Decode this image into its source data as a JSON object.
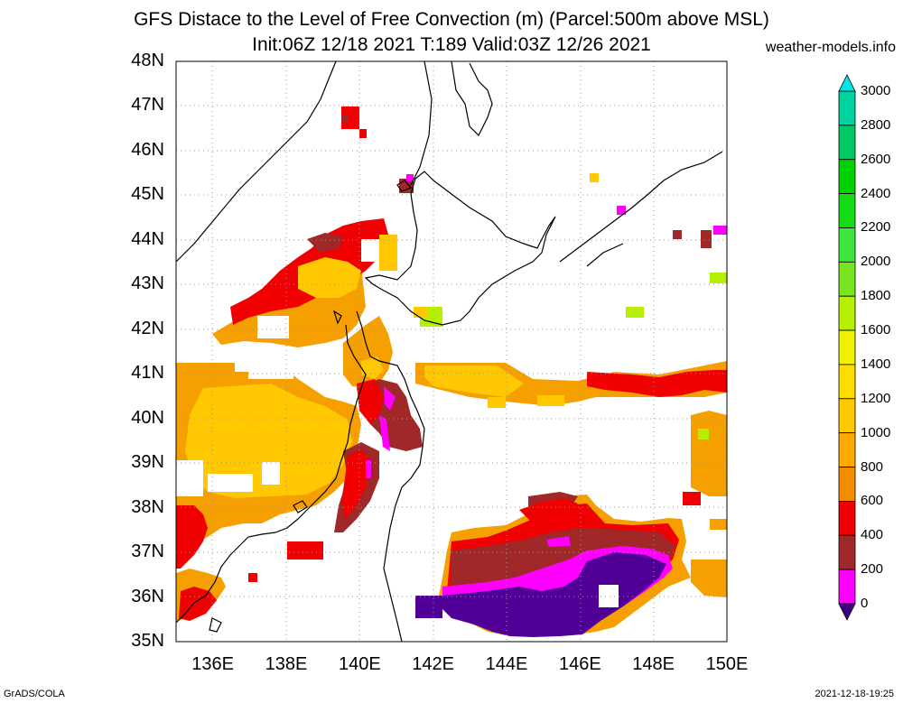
{
  "header": {
    "title": "GFS Distace to the Level of Free Convection (m) (Parcel:500m above MSL)",
    "subtitle": "Init:06Z 12/18 2021 T:189 Valid:03Z 12/26 2021",
    "site": "weather-models.info"
  },
  "footer": {
    "left": "GrADS/COLA",
    "right": "2021-12-18-19:25"
  },
  "map": {
    "lat_labels": [
      "48N",
      "47N",
      "46N",
      "45N",
      "44N",
      "43N",
      "42N",
      "41N",
      "40N",
      "39N",
      "38N",
      "37N",
      "36N",
      "35N"
    ],
    "lon_labels": [
      "136E",
      "138E",
      "140E",
      "142E",
      "144E",
      "146E",
      "148E",
      "150E"
    ],
    "lon_range": [
      135,
      150
    ],
    "lat_range": [
      35,
      48
    ]
  },
  "colorbar": {
    "levels": [
      "3000",
      "2800",
      "2600",
      "2400",
      "2200",
      "2000",
      "1800",
      "1600",
      "1400",
      "1200",
      "1000",
      "800",
      "600",
      "400",
      "200",
      "0"
    ],
    "colors": [
      "#00e6e6",
      "#00d2a0",
      "#00c864",
      "#00d200",
      "#14dc14",
      "#3ce63c",
      "#78e61e",
      "#b4f000",
      "#f0f000",
      "#ffdc00",
      "#ffc800",
      "#ffaa00",
      "#f58c00",
      "#f00000",
      "#a02828",
      "#ff00ff",
      "#500096"
    ],
    "top_arrow_color": "#00e6e6",
    "bottom_arrow_color": "#3c0080"
  }
}
